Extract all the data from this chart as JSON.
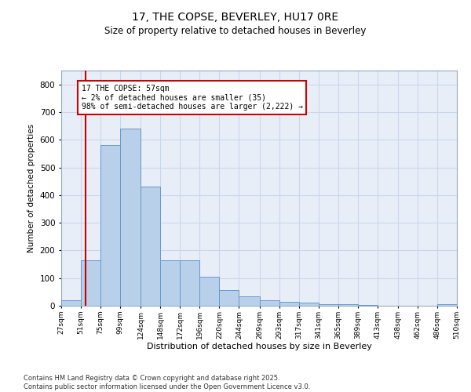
{
  "title": "17, THE COPSE, BEVERLEY, HU17 0RE",
  "subtitle": "Size of property relative to detached houses in Beverley",
  "xlabel": "Distribution of detached houses by size in Beverley",
  "ylabel": "Number of detached properties",
  "bar_color": "#b8d0ea",
  "bar_edge_color": "#6699cc",
  "grid_color": "#c8d8ec",
  "background_color": "#e8eef8",
  "vline_x": 57,
  "vline_color": "#cc0000",
  "bins": [
    27,
    51,
    75,
    99,
    124,
    148,
    172,
    196,
    220,
    244,
    269,
    293,
    317,
    341,
    365,
    389,
    413,
    438,
    462,
    486,
    510
  ],
  "values": [
    20,
    165,
    580,
    640,
    430,
    165,
    165,
    105,
    57,
    35,
    20,
    13,
    10,
    7,
    5,
    3,
    1,
    0,
    0,
    7
  ],
  "tick_labels": [
    "27sqm",
    "51sqm",
    "75sqm",
    "99sqm",
    "124sqm",
    "148sqm",
    "172sqm",
    "196sqm",
    "220sqm",
    "244sqm",
    "269sqm",
    "293sqm",
    "317sqm",
    "341sqm",
    "365sqm",
    "389sqm",
    "413sqm",
    "438sqm",
    "462sqm",
    "486sqm",
    "510sqm"
  ],
  "annotation_title": "17 THE COPSE: 57sqm",
  "annotation_line1": "← 2% of detached houses are smaller (35)",
  "annotation_line2": "98% of semi-detached houses are larger (2,222) →",
  "annotation_box_color": "#ffffff",
  "annotation_box_edge": "#cc0000",
  "ylim": [
    0,
    850
  ],
  "yticks": [
    0,
    100,
    200,
    300,
    400,
    500,
    600,
    700,
    800
  ],
  "footer1": "Contains HM Land Registry data © Crown copyright and database right 2025.",
  "footer2": "Contains public sector information licensed under the Open Government Licence v3.0."
}
